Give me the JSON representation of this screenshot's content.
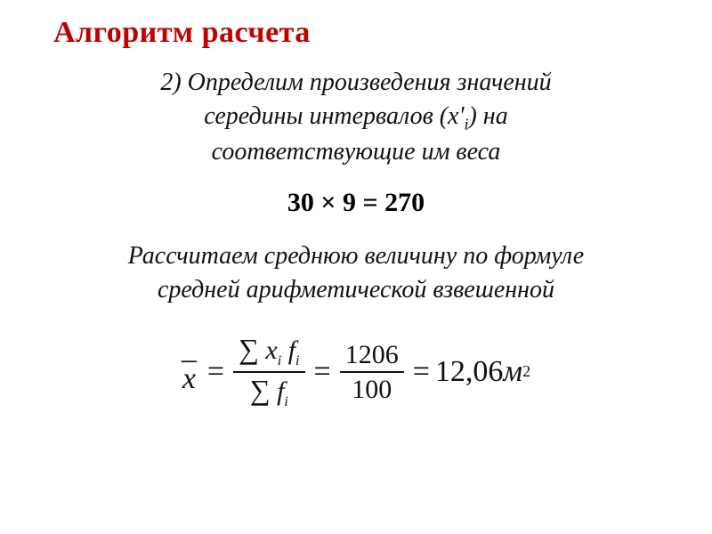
{
  "title": "Алгоритм расчета",
  "para1_line1": "2) Определим произведения значений",
  "para1_line2": "середины интервалов (x'",
  "para1_sub": "i",
  "para1_line2b": ") на",
  "para1_line3": "соответствующие им веса",
  "eq1": "30 × 9 = 270",
  "para2_line1": "Рассчитаем среднюю величину по формуле",
  "para2_line2": "средней арифметической взвешенной",
  "formula": {
    "xbar_dash": "–",
    "xbar_x": "x",
    "sum_sym": "∑",
    "num_expr_x": "x",
    "num_expr_i": "i",
    "num_expr_f": "f",
    "num_expr_i2": "i",
    "den_expr_f": "f",
    "den_expr_i": "i",
    "frac2_num": "1206",
    "frac2_den": "100",
    "result_val": "12,06",
    "unit": "м",
    "unit_sup": "2",
    "eq": "="
  },
  "colors": {
    "title": "#c00000",
    "text": "#111111",
    "background": "#ffffff"
  }
}
